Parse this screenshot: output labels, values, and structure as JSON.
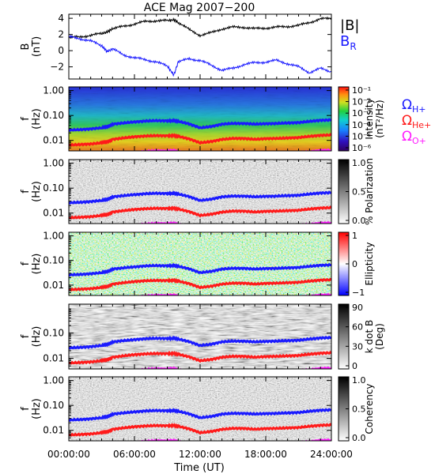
{
  "title": "ACE Mag 2007−200",
  "legend_top": {
    "b_mag": "|B|",
    "b_r": "B",
    "b_r_sub": "R",
    "colors": {
      "b_mag": "#000000",
      "b_r": "#1a1aff"
    }
  },
  "legend_freq": [
    {
      "main": "Ω",
      "sub": "H+",
      "color": "#1a1aff"
    },
    {
      "main": "Ω",
      "sub": "He+",
      "color": "#ff1a1a"
    },
    {
      "main": "Ω",
      "sub": "O+",
      "color": "#ff1aff"
    }
  ],
  "x_axis": {
    "label": "Time (UT)",
    "ticks": [
      "00:00:00",
      "06:00:00",
      "12:00:00",
      "18:00:00",
      "24:00:00"
    ],
    "minor_every_hours": 1
  },
  "chart_data": [
    {
      "type": "line",
      "panel": "field",
      "ylabel": "B",
      "yunit": "(nT)",
      "ylim": [
        -3.5,
        4.5
      ],
      "yticks": [
        "4",
        "2",
        "0",
        "−2"
      ],
      "ytick_values": [
        4,
        2,
        0,
        -2
      ],
      "x_hours": [
        0,
        1,
        2,
        3,
        3.5,
        4,
        5,
        6,
        7,
        8,
        9,
        9.6,
        10,
        11,
        12,
        13,
        14,
        15,
        16,
        17,
        18,
        19,
        20,
        21,
        22,
        23,
        24
      ],
      "series": [
        {
          "name": "|B|",
          "color": "#000000",
          "values": [
            1.6,
            1.7,
            1.9,
            2.1,
            2.3,
            2.7,
            3.0,
            3.3,
            3.6,
            3.7,
            3.7,
            3.8,
            3.5,
            2.6,
            1.9,
            2.2,
            2.7,
            2.9,
            2.9,
            2.7,
            2.8,
            2.9,
            3.0,
            3.1,
            3.5,
            3.9,
            4.0
          ]
        },
        {
          "name": "B",
          "color": "#1a1aff",
          "values": [
            1.7,
            1.5,
            1.2,
            0.6,
            -0.1,
            0.2,
            -0.5,
            -0.9,
            -1.1,
            -1.4,
            -1.9,
            -3.0,
            -1.4,
            -1.0,
            -1.2,
            -1.8,
            -2.4,
            -2.2,
            -1.7,
            -1.5,
            -1.4,
            -1.2,
            -1.6,
            -2.0,
            -2.7,
            -2.2,
            -2.6
          ]
        }
      ]
    },
    {
      "type": "heatmap",
      "panel": "intensity",
      "ylabel": "f",
      "yunit": "(Hz)",
      "yticks": [
        "1.00",
        "0.10",
        "0.01"
      ],
      "colorbar": {
        "label": "Intensity",
        "label2": "(nT²/Hz)",
        "ticks": [
          "10⁻¹",
          "10⁻²",
          "10⁻³",
          "10⁻⁴",
          "10⁻⁵",
          "10⁻⁶"
        ],
        "colormap": "rainbow"
      }
    },
    {
      "type": "heatmap",
      "panel": "polarization",
      "ylabel": "f",
      "yunit": "(Hz)",
      "yticks": [
        "1.00",
        "0.10",
        "0.01"
      ],
      "colorbar": {
        "label": "% Polarization",
        "label2": "",
        "ticks": [
          "1.0",
          "0.5",
          "0.0"
        ],
        "colormap": "gray"
      }
    },
    {
      "type": "heatmap",
      "panel": "ellipticity",
      "ylabel": "f",
      "yunit": "(Hz)",
      "yticks": [
        "1.00",
        "0.10",
        "0.01"
      ],
      "colorbar": {
        "label": "Ellipticity",
        "label2": "",
        "ticks": [
          "1",
          "0",
          "−1"
        ],
        "colormap": "bwr"
      }
    },
    {
      "type": "heatmap",
      "panel": "kdotb",
      "ylabel": "f",
      "yunit": "(Hz)",
      "yticks": [
        "0.10",
        "0.01"
      ],
      "colorbar": {
        "label": "k dot B",
        "label2": "(Deg)",
        "ticks": [
          "90",
          "60",
          "30",
          "0"
        ],
        "colormap": "gray"
      }
    },
    {
      "type": "heatmap",
      "panel": "coherency",
      "ylabel": "f",
      "yunit": "(Hz)",
      "yticks": [
        "1.00",
        "0.10",
        "0.01"
      ],
      "colorbar": {
        "label": "Coherency",
        "label2": "",
        "ticks": [
          "1.0",
          "0.5",
          "0.0"
        ],
        "colormap": "gray"
      }
    }
  ],
  "gyro_lines": {
    "x_hours": [
      0,
      1,
      2,
      3,
      3.5,
      4,
      5,
      6,
      7,
      8,
      9,
      9.6,
      10,
      11,
      12,
      13,
      14,
      15,
      16,
      17,
      18,
      19,
      20,
      21,
      22,
      23,
      24
    ],
    "series": [
      {
        "name": "ΩH+",
        "color": "#1a1aff",
        "values_hz": [
          0.026,
          0.027,
          0.029,
          0.032,
          0.035,
          0.045,
          0.05,
          0.055,
          0.06,
          0.062,
          0.061,
          0.062,
          0.058,
          0.046,
          0.032,
          0.036,
          0.045,
          0.048,
          0.048,
          0.045,
          0.047,
          0.048,
          0.05,
          0.052,
          0.058,
          0.064,
          0.066
        ]
      },
      {
        "name": "ΩHe+",
        "color": "#ff1a1a",
        "values_hz": [
          0.0065,
          0.0068,
          0.0072,
          0.008,
          0.0088,
          0.011,
          0.0125,
          0.014,
          0.015,
          0.0155,
          0.0153,
          0.0155,
          0.0145,
          0.0115,
          0.008,
          0.009,
          0.011,
          0.012,
          0.012,
          0.011,
          0.0118,
          0.012,
          0.0125,
          0.013,
          0.0145,
          0.016,
          0.0165
        ]
      },
      {
        "name": "ΩO+",
        "color": "#ff1aff",
        "values_hz": [
          0.0016,
          0.0017,
          0.0018,
          0.002,
          0.0022,
          0.0028,
          0.0031,
          0.0034,
          0.0037,
          0.0039,
          0.0038,
          0.0039,
          0.0036,
          0.0029,
          0.002,
          0.0022,
          0.0028,
          0.003,
          0.003,
          0.0028,
          0.0029,
          0.003,
          0.0031,
          0.0033,
          0.0036,
          0.004,
          0.0041
        ]
      }
    ]
  }
}
